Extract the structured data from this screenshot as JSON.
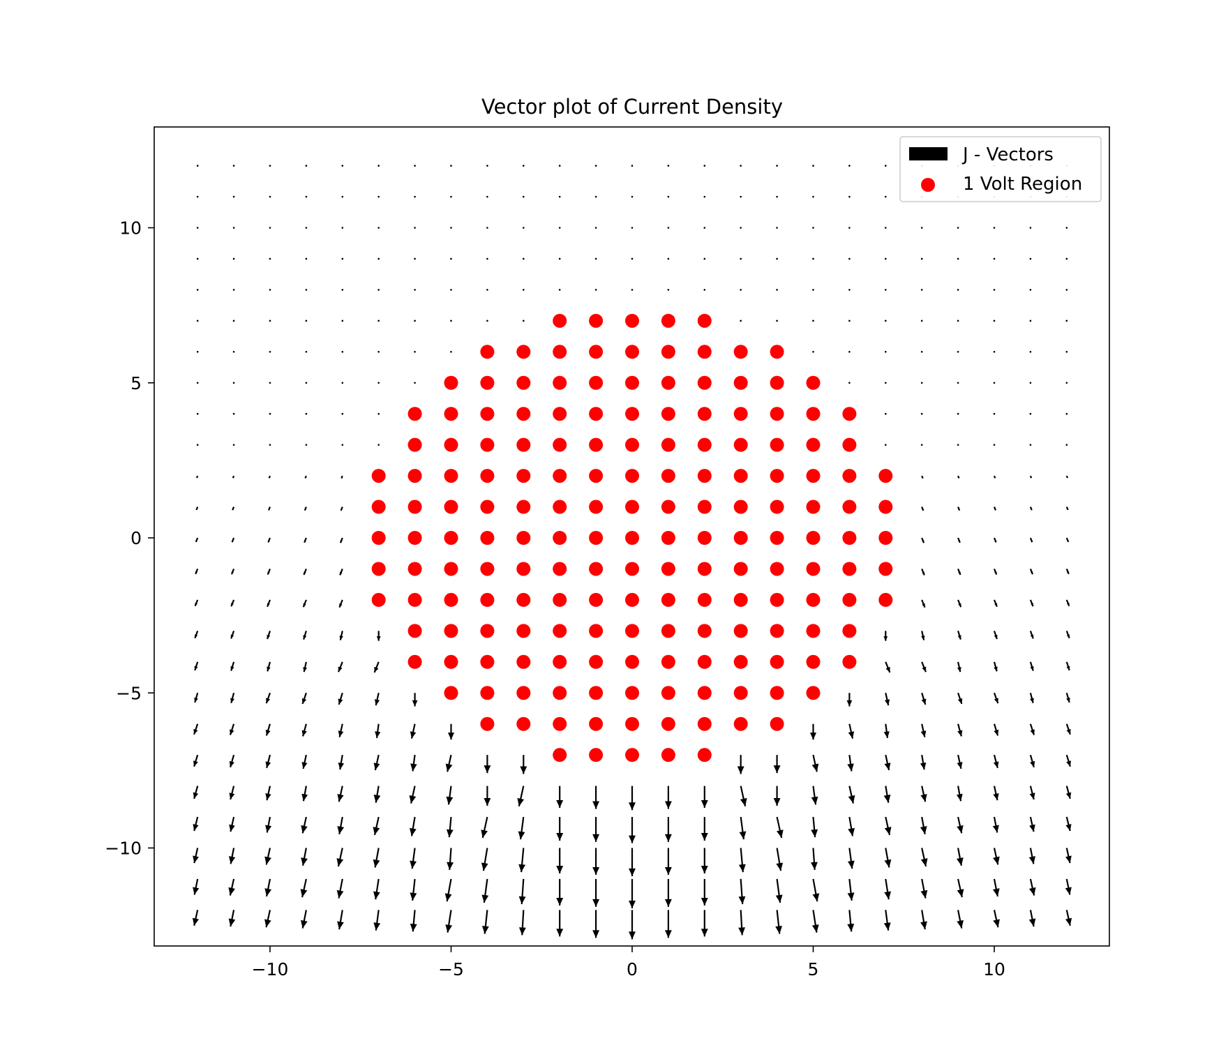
{
  "chart_data": {
    "type": "scatter",
    "title": "Vector plot of Current Density",
    "xlabel": "",
    "ylabel": "",
    "xlim": [
      -13.2,
      13.2
    ],
    "ylim": [
      -13.2,
      13.2
    ],
    "grid": false,
    "legend_position": "upper right",
    "x_ticks": [
      -10,
      -5,
      0,
      5,
      10
    ],
    "y_ticks": [
      10,
      5,
      0,
      -5,
      -10
    ],
    "x_tick_labels": [
      "−10",
      "−5",
      "0",
      "5",
      "10"
    ],
    "y_tick_labels": [
      "10",
      "5",
      "0",
      "−5",
      "−10"
    ],
    "colors": {
      "vectors": "#000000",
      "region": "#ff0000"
    },
    "series": [
      {
        "name": "J - Vectors",
        "kind": "quiver",
        "grid_x_range": [
          -12,
          12
        ],
        "grid_y_range": [
          -12,
          12
        ],
        "grid_step": 1,
        "description_of_field": "vectors point away from the region boundary, strongest below the region, magnitude grows downward"
      },
      {
        "name": "1 Volt Region",
        "kind": "scatter",
        "rows": [
          {
            "y": 7,
            "x_min": -2,
            "x_max": 2
          },
          {
            "y": 6,
            "x_min": -4,
            "x_max": 4
          },
          {
            "y": 5,
            "x_min": -5,
            "x_max": 5
          },
          {
            "y": 4,
            "x_min": -6,
            "x_max": 6
          },
          {
            "y": 3,
            "x_min": -6,
            "x_max": 6
          },
          {
            "y": 2,
            "x_min": -7,
            "x_max": 7
          },
          {
            "y": 1,
            "x_min": -7,
            "x_max": 7
          },
          {
            "y": 0,
            "x_min": -7,
            "x_max": 7
          },
          {
            "y": -1,
            "x_min": -7,
            "x_max": 7
          },
          {
            "y": -2,
            "x_min": -7,
            "x_max": 7
          },
          {
            "y": -3,
            "x_min": -6,
            "x_max": 6
          },
          {
            "y": -4,
            "x_min": -6,
            "x_max": 6
          },
          {
            "y": -5,
            "x_min": -5,
            "x_max": 5
          },
          {
            "y": -6,
            "x_min": -4,
            "x_max": 4
          },
          {
            "y": -7,
            "x_min": -2,
            "x_max": 2
          }
        ]
      }
    ]
  }
}
